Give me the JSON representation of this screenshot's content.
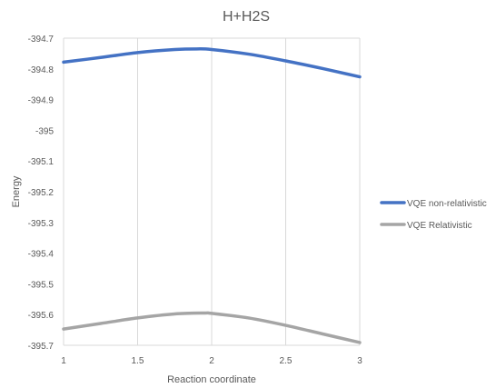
{
  "chart_data": {
    "type": "line",
    "title": "H+H2S",
    "xlabel": "Reaction coordinate",
    "ylabel": "Energy",
    "xlim": [
      1,
      3
    ],
    "ylim": [
      -395.7,
      -394.7
    ],
    "xticks": [
      "1",
      "1.5",
      "2",
      "2.5",
      "3"
    ],
    "xtick_values": [
      1,
      1.5,
      2,
      2.5,
      3
    ],
    "yticks": [
      "-394.7",
      "-394.8",
      "-394.9",
      "-395",
      "-395.1",
      "-395.2",
      "-395.3",
      "-395.4",
      "-395.5",
      "-395.6",
      "-395.7"
    ],
    "ytick_values": [
      -394.7,
      -394.8,
      -394.9,
      -395.0,
      -395.1,
      -395.2,
      -395.3,
      -395.4,
      -395.5,
      -395.6,
      -395.7
    ],
    "grid": "vertical",
    "legend_position": "right",
    "series": [
      {
        "name": "VQE non-relativistic",
        "color": "#4472C4",
        "x": [
          1,
          1.25,
          1.5,
          1.75,
          1.9,
          2.0,
          2.25,
          2.5,
          2.75,
          3
        ],
        "y": [
          -394.778,
          -394.763,
          -394.747,
          -394.737,
          -394.735,
          -394.737,
          -394.752,
          -394.774,
          -394.799,
          -394.826
        ]
      },
      {
        "name": "VQE Relativistic",
        "color": "#A5A5A5",
        "x": [
          1,
          1.25,
          1.5,
          1.75,
          1.95,
          2.0,
          2.25,
          2.5,
          2.75,
          3
        ],
        "y": [
          -395.647,
          -395.629,
          -395.611,
          -395.598,
          -395.595,
          -395.596,
          -395.611,
          -395.635,
          -395.663,
          -395.691
        ]
      }
    ]
  }
}
